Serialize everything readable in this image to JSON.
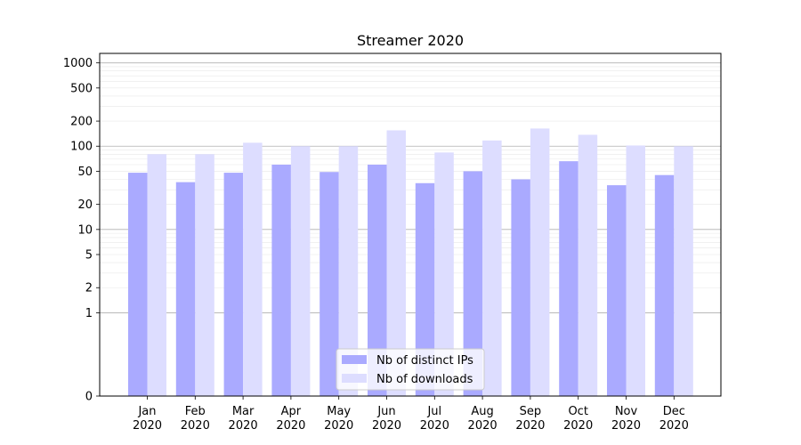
{
  "chart_data": {
    "type": "bar",
    "title": "Streamer 2020",
    "xlabel": "",
    "ylabel": "",
    "yscale": "symlog",
    "ylim": [
      0,
      1300
    ],
    "yticks": [
      0,
      1,
      2,
      5,
      10,
      20,
      50,
      100,
      200,
      500,
      1000
    ],
    "grid": "horizontal",
    "legend_position": "bottom-center",
    "categories": [
      "Jan\n2020",
      "Feb\n2020",
      "Mar\n2020",
      "Apr\n2020",
      "May\n2020",
      "Jun\n2020",
      "Jul\n2020",
      "Aug\n2020",
      "Sep\n2020",
      "Oct\n2020",
      "Nov\n2020",
      "Dec\n2020"
    ],
    "series": [
      {
        "name": "Nb of distinct IPs",
        "color": "#aaaaff",
        "values": [
          48,
          37,
          48,
          60,
          49,
          60,
          36,
          50,
          40,
          66,
          34,
          45
        ]
      },
      {
        "name": "Nb of downloads",
        "color": "#ddddff",
        "values": [
          80,
          80,
          110,
          100,
          100,
          155,
          84,
          117,
          163,
          137,
          102,
          100
        ]
      }
    ]
  }
}
